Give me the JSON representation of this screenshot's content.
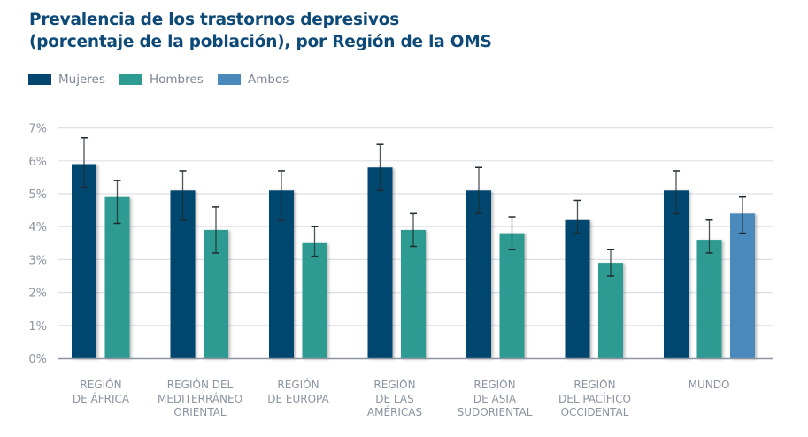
{
  "colors": {
    "title": "#0d4a78",
    "mujeres": "#034670",
    "hombres": "#2e9b92",
    "ambos": "#4a89bc",
    "grid": "#dde0e6",
    "axis": "#8c94a0",
    "tick_text": "#8e96a3",
    "error_bar": "#1f2a30"
  },
  "chart_data": {
    "type": "bar",
    "title": "Prevalencia de los trastornos depresivos (porcentaje de la población), por Región de la OMS",
    "title_lines": [
      "Prevalencia de los trastornos depresivos",
      "(porcentaje de la población), por Región de la OMS"
    ],
    "xlabel": "",
    "ylabel": "",
    "ylim": [
      0,
      7
    ],
    "yticks": [
      0,
      1,
      2,
      3,
      4,
      5,
      6,
      7
    ],
    "ytick_labels": [
      "0%",
      "1%",
      "2%",
      "3%",
      "4%",
      "5%",
      "6%",
      "7%"
    ],
    "grid": true,
    "legend_position": "top-left",
    "legend": [
      {
        "name": "Mujeres",
        "color_key": "mujeres"
      },
      {
        "name": "Hombres",
        "color_key": "hombres"
      },
      {
        "name": "Ambos",
        "color_key": "ambos"
      }
    ],
    "categories": [
      "REGIÓN\nDE ÁFRICA",
      "REGIÓN DEL\nMEDITERRÁNEO\nORIENTAL",
      "REGIÓN\nDE EUROPA",
      "REGIÓN\nDE LAS\nAMÉRICAS",
      "REGIÓN\nDE ASIA\nSUDORIENTAL",
      "REGIÓN\nDEL PACÍFICO\nOCCIDENTAL",
      "MUNDO"
    ],
    "series": [
      {
        "name": "Mujeres",
        "color_key": "mujeres",
        "values": [
          5.9,
          5.1,
          5.1,
          5.8,
          5.1,
          4.2,
          5.1
        ],
        "error_low": [
          5.2,
          4.2,
          4.2,
          5.1,
          4.4,
          3.8,
          4.4
        ],
        "error_high": [
          6.7,
          5.7,
          5.7,
          6.5,
          5.8,
          4.8,
          5.7
        ]
      },
      {
        "name": "Hombres",
        "color_key": "hombres",
        "values": [
          4.9,
          3.9,
          3.5,
          3.9,
          3.8,
          2.9,
          3.6
        ],
        "error_low": [
          4.1,
          3.2,
          3.1,
          3.4,
          3.3,
          2.5,
          3.2
        ],
        "error_high": [
          5.4,
          4.6,
          4.0,
          4.4,
          4.3,
          3.3,
          4.2
        ]
      },
      {
        "name": "Ambos",
        "color_key": "ambos",
        "values": [
          null,
          null,
          null,
          null,
          null,
          null,
          4.4
        ],
        "error_low": [
          null,
          null,
          null,
          null,
          null,
          null,
          3.8
        ],
        "error_high": [
          null,
          null,
          null,
          null,
          null,
          null,
          4.9
        ]
      }
    ]
  }
}
